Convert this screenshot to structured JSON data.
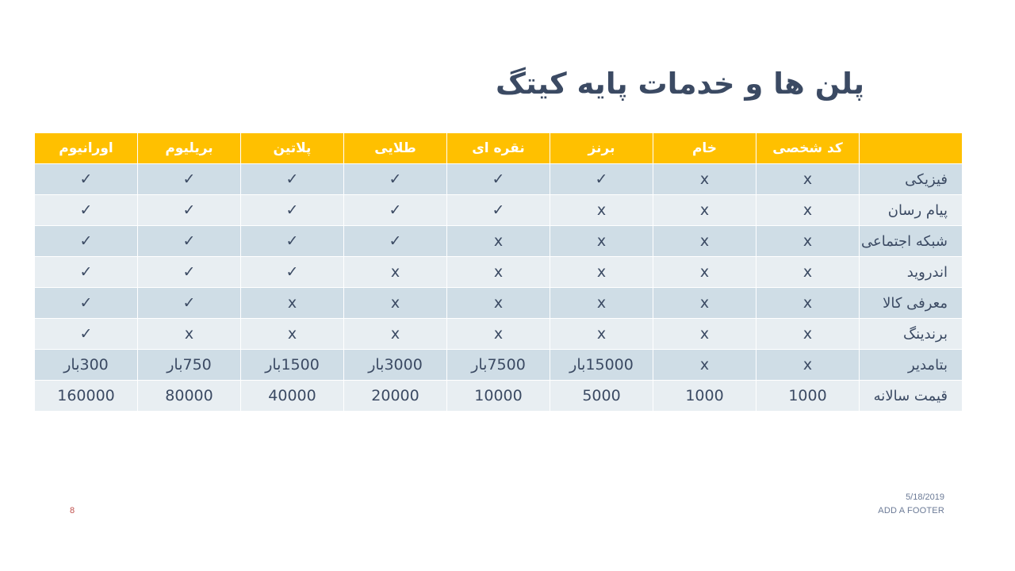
{
  "slide": {
    "title": "پلن ها و خدمات پایه کیتگ",
    "date": "5/18/2019",
    "footer": "ADD A FOOTER",
    "page_number": "8"
  },
  "colors": {
    "header_bg": "#ffc000",
    "row_dark": "#cfdde6",
    "row_light": "#e8eef2",
    "title_text": "#3b4a63"
  },
  "table": {
    "headers": [
      "",
      "کد شخصی",
      "خام",
      "برنز",
      "نقره ای",
      "طلایی",
      "پلاتین",
      "بریلیوم",
      "اورانیوم"
    ],
    "rows": [
      [
        "فیزیکی",
        "x",
        "x",
        "✓",
        "✓",
        "✓",
        "✓",
        "✓",
        "✓"
      ],
      [
        "پیام رسان",
        "x",
        "x",
        "x",
        "✓",
        "✓",
        "✓",
        "✓",
        "✓"
      ],
      [
        "شبکه اجتماعی",
        "x",
        "x",
        "x",
        "x",
        "✓",
        "✓",
        "✓",
        "✓"
      ],
      [
        "اندروید",
        "x",
        "x",
        "x",
        "x",
        "x",
        "✓",
        "✓",
        "✓"
      ],
      [
        "معرفی کالا",
        "x",
        "x",
        "x",
        "x",
        "x",
        "x",
        "✓",
        "✓"
      ],
      [
        "برندینگ",
        "x",
        "x",
        "x",
        "x",
        "x",
        "x",
        "x",
        "✓"
      ],
      [
        "بتامدیر",
        "x",
        "x",
        "15000بار",
        "7500بار",
        "3000بار",
        "1500بار",
        "750بار",
        "300بار"
      ],
      [
        "قیمت سالانه",
        "1000",
        "1000",
        "5000",
        "10000",
        "20000",
        "40000",
        "80000",
        "160000"
      ]
    ]
  }
}
